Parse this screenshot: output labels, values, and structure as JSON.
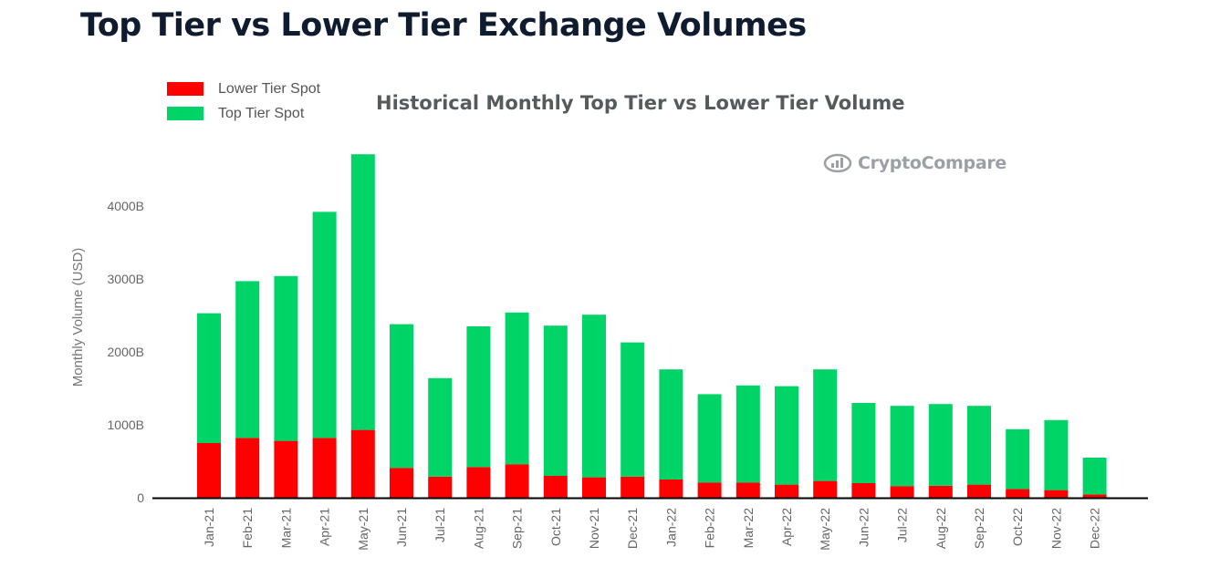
{
  "page_title": "Top Tier vs Lower Tier Exchange Volumes",
  "watermark": "CryptoCompare",
  "colors": {
    "lower": "#ff0000",
    "top": "#00d467",
    "axis": "#000000"
  },
  "chart_data": {
    "type": "bar",
    "stacked": true,
    "title": "Historical Monthly Top Tier vs Lower Tier Volume",
    "xlabel": "",
    "ylabel": "Monthly Volume (USD)",
    "ylim": [
      0,
      4750
    ],
    "yticks": [
      0,
      1000,
      2000,
      3000,
      4000
    ],
    "ytick_labels": [
      "0",
      "1000B",
      "2000B",
      "3000B",
      "4000B"
    ],
    "legend_position": "top-left",
    "categories": [
      "Jan-21",
      "Feb-21",
      "Mar-21",
      "Apr-21",
      "May-21",
      "Jun-21",
      "Jul-21",
      "Aug-21",
      "Sep-21",
      "Oct-21",
      "Nov-21",
      "Dec-21",
      "Jan-22",
      "Feb-22",
      "Mar-22",
      "Apr-22",
      "May-22",
      "Jun-22",
      "Jul-22",
      "Aug-22",
      "Sep-22",
      "Oct-22",
      "Nov-22",
      "Dec-22"
    ],
    "series": [
      {
        "name": "Lower Tier Spot",
        "color": "#ff0000",
        "values": [
          750,
          820,
          780,
          820,
          930,
          410,
          290,
          420,
          460,
          300,
          280,
          290,
          250,
          210,
          210,
          180,
          230,
          200,
          160,
          165,
          180,
          120,
          105,
          45
        ]
      },
      {
        "name": "Top Tier Spot",
        "color": "#00d467",
        "values": [
          1780,
          2150,
          2260,
          3100,
          3780,
          1970,
          1350,
          1930,
          2080,
          2060,
          2230,
          1840,
          1510,
          1210,
          1330,
          1350,
          1530,
          1100,
          1100,
          1120,
          1080,
          820,
          960,
          505
        ]
      }
    ]
  }
}
